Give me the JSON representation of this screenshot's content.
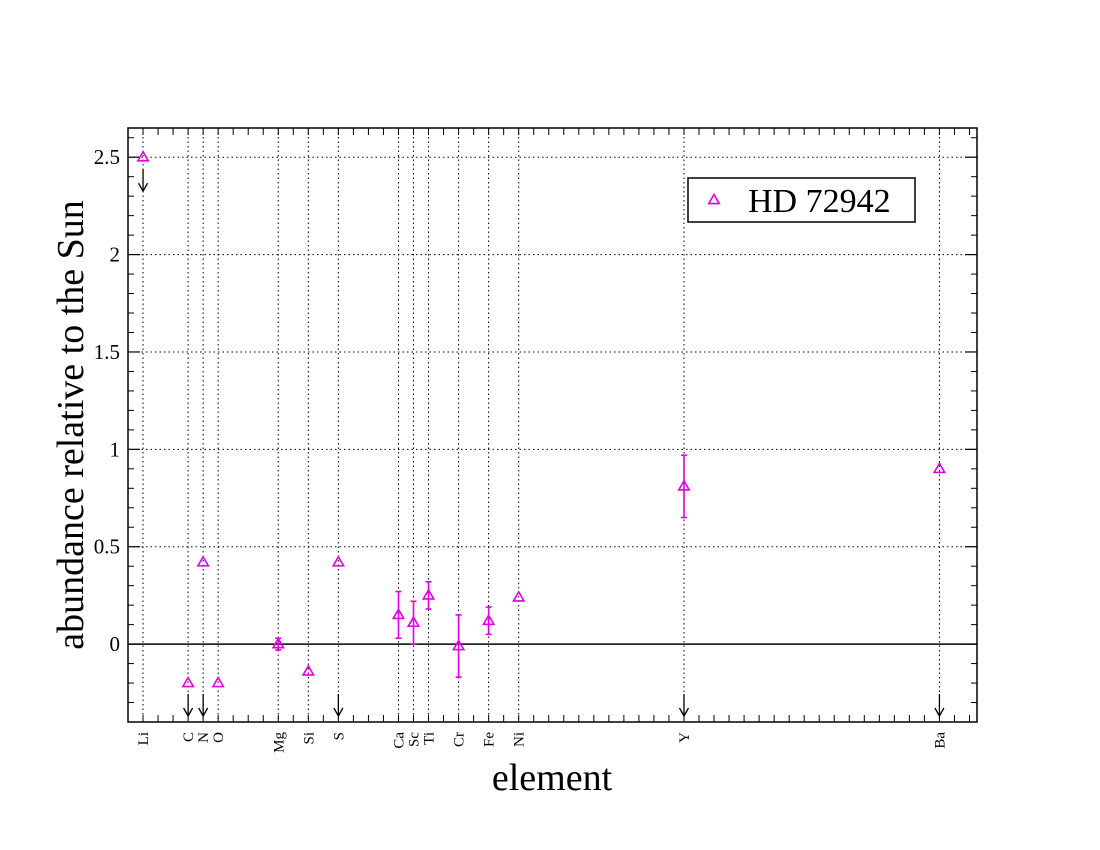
{
  "chart_data": {
    "type": "scatter",
    "xlabel": "element",
    "ylabel": "abundance relative to the Sun",
    "ylim": [
      -0.4,
      2.65
    ],
    "yticks": [
      {
        "value": 0,
        "label": "0"
      },
      {
        "value": 0.5,
        "label": "0.5"
      },
      {
        "value": 1,
        "label": "1"
      },
      {
        "value": 1.5,
        "label": "1.5"
      },
      {
        "value": 2,
        "label": "2"
      },
      {
        "value": 2.5,
        "label": "2.5"
      }
    ],
    "xrange": [
      2,
      58.5
    ],
    "elements": [
      {
        "symbol": "Li",
        "z": 3
      },
      {
        "symbol": "C",
        "z": 6
      },
      {
        "symbol": "N",
        "z": 7
      },
      {
        "symbol": "O",
        "z": 8
      },
      {
        "symbol": "Mg",
        "z": 12
      },
      {
        "symbol": "Si",
        "z": 14
      },
      {
        "symbol": "S",
        "z": 16
      },
      {
        "symbol": "Ca",
        "z": 20
      },
      {
        "symbol": "Sc",
        "z": 21
      },
      {
        "symbol": "Ti",
        "z": 22
      },
      {
        "symbol": "Cr",
        "z": 24
      },
      {
        "symbol": "Fe",
        "z": 26
      },
      {
        "symbol": "Ni",
        "z": 28
      },
      {
        "symbol": "Y",
        "z": 39
      },
      {
        "symbol": "Ba",
        "z": 56
      }
    ],
    "grid": true,
    "reference_line": 0,
    "legend_position": "top-right",
    "colors": {
      "series": "#e000e0",
      "arrow": "#000000",
      "axis": "#000000"
    },
    "series": [
      {
        "name": "HD 72942",
        "marker": "open-triangle",
        "points": [
          {
            "element": "Li",
            "z": 3,
            "y": 2.5,
            "err": 0,
            "upper_limit": true
          },
          {
            "element": "C",
            "z": 6,
            "y": -0.2,
            "err": 0,
            "upper_limit": true
          },
          {
            "element": "N",
            "z": 7,
            "y": 0.42,
            "err": 0,
            "upper_limit": true
          },
          {
            "element": "O",
            "z": 8,
            "y": -0.2,
            "err": 0,
            "upper_limit": false
          },
          {
            "element": "Mg",
            "z": 12,
            "y": 0.0,
            "err": 0.03,
            "upper_limit": false
          },
          {
            "element": "Si",
            "z": 14,
            "y": -0.14,
            "err": 0,
            "upper_limit": false
          },
          {
            "element": "S",
            "z": 16,
            "y": 0.42,
            "err": 0,
            "upper_limit": true
          },
          {
            "element": "Ca",
            "z": 20,
            "y": 0.15,
            "err": 0.12,
            "upper_limit": false
          },
          {
            "element": "Sc",
            "z": 21,
            "y": 0.11,
            "err": 0.11,
            "upper_limit": false
          },
          {
            "element": "Ti",
            "z": 22,
            "y": 0.25,
            "err": 0.07,
            "upper_limit": false
          },
          {
            "element": "Cr",
            "z": 24,
            "y": -0.01,
            "err": 0.16,
            "upper_limit": false
          },
          {
            "element": "Fe",
            "z": 26,
            "y": 0.12,
            "err": 0.07,
            "upper_limit": false
          },
          {
            "element": "Ni",
            "z": 28,
            "y": 0.24,
            "err": 0,
            "upper_limit": false
          },
          {
            "element": "Y",
            "z": 39,
            "y": 0.81,
            "err": 0.16,
            "upper_limit": true
          },
          {
            "element": "Ba",
            "z": 56,
            "y": 0.9,
            "err": 0,
            "upper_limit": true
          }
        ]
      }
    ]
  }
}
